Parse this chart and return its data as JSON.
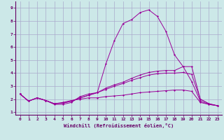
{
  "xlabel": "Windchill (Refroidissement éolien,°C)",
  "background_color": "#cce8e8",
  "grid_color": "#aaaacc",
  "line_color": "#990099",
  "xlim": [
    -0.5,
    23.5
  ],
  "ylim": [
    0.8,
    9.5
  ],
  "xticks": [
    0,
    1,
    2,
    3,
    4,
    5,
    6,
    7,
    8,
    9,
    10,
    11,
    12,
    13,
    14,
    15,
    16,
    17,
    18,
    19,
    20,
    21,
    22,
    23
  ],
  "yticks": [
    1,
    2,
    3,
    4,
    5,
    6,
    7,
    8,
    9
  ],
  "series": [
    {
      "x": [
        0,
        1,
        2,
        3,
        4,
        5,
        6,
        7,
        8,
        9,
        10,
        11,
        12,
        13,
        14,
        15,
        16,
        17,
        18,
        19,
        20,
        21,
        22,
        23
      ],
      "y": [
        2.4,
        1.85,
        2.1,
        1.9,
        1.6,
        1.6,
        1.75,
        2.2,
        2.4,
        2.5,
        4.7,
        6.5,
        7.8,
        8.1,
        8.65,
        8.85,
        8.35,
        7.2,
        5.4,
        4.5,
        3.35,
        1.85,
        1.6,
        1.5
      ]
    },
    {
      "x": [
        0,
        1,
        2,
        3,
        4,
        5,
        6,
        7,
        8,
        9,
        10,
        11,
        12,
        13,
        14,
        15,
        16,
        17,
        18,
        19,
        20,
        21,
        22,
        23
      ],
      "y": [
        2.4,
        1.85,
        2.1,
        1.9,
        1.65,
        1.7,
        1.85,
        2.1,
        2.3,
        2.5,
        2.85,
        3.1,
        3.3,
        3.6,
        3.85,
        4.05,
        4.15,
        4.2,
        4.2,
        4.5,
        4.5,
        2.0,
        1.65,
        1.5
      ]
    },
    {
      "x": [
        0,
        1,
        2,
        3,
        4,
        5,
        6,
        7,
        8,
        9,
        10,
        11,
        12,
        13,
        14,
        15,
        16,
        17,
        18,
        19,
        20,
        21,
        22,
        23
      ],
      "y": [
        2.4,
        1.85,
        2.1,
        1.9,
        1.65,
        1.7,
        1.85,
        2.1,
        2.3,
        2.5,
        2.75,
        3.0,
        3.2,
        3.45,
        3.65,
        3.85,
        3.95,
        4.0,
        4.0,
        4.05,
        3.9,
        2.0,
        1.65,
        1.5
      ]
    },
    {
      "x": [
        0,
        1,
        2,
        3,
        4,
        5,
        6,
        7,
        8,
        9,
        10,
        11,
        12,
        13,
        14,
        15,
        16,
        17,
        18,
        19,
        20,
        21,
        22,
        23
      ],
      "y": [
        2.4,
        1.85,
        2.1,
        1.9,
        1.65,
        1.75,
        1.9,
        2.0,
        2.1,
        2.1,
        2.2,
        2.25,
        2.3,
        2.4,
        2.5,
        2.55,
        2.6,
        2.65,
        2.7,
        2.7,
        2.6,
        1.75,
        1.6,
        1.5
      ]
    }
  ]
}
